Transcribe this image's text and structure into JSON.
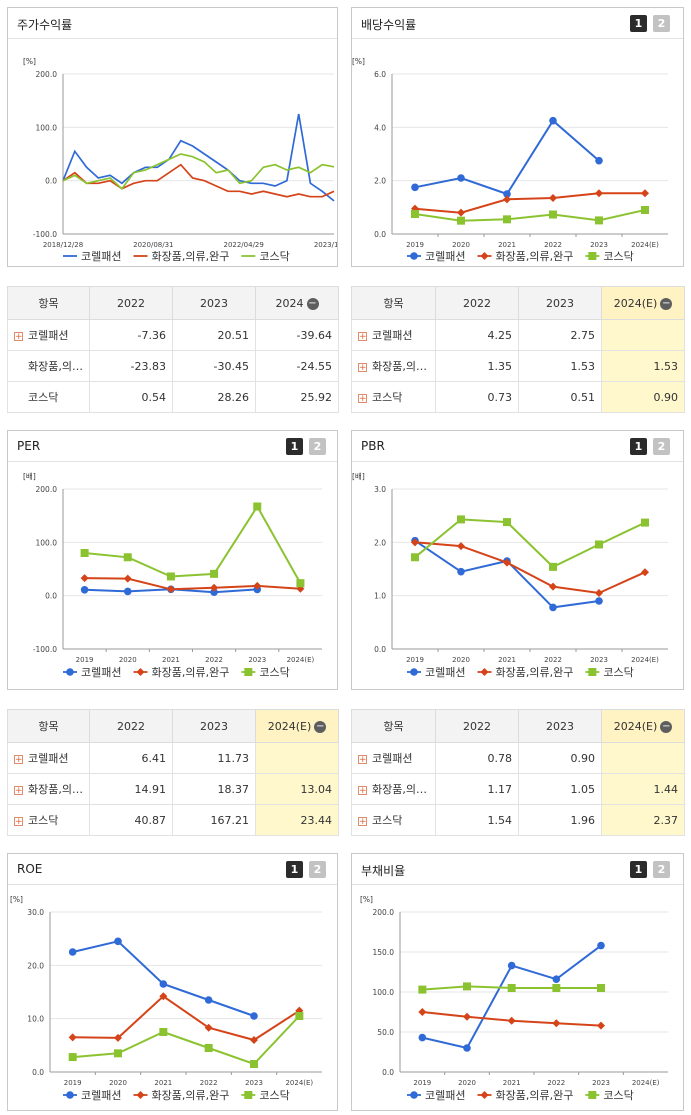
{
  "colors": {
    "s1": "#2f6ad6",
    "s2": "#d54419",
    "s3": "#8bc330"
  },
  "panels": {
    "stock": {
      "title": "주가수익률",
      "unit": "[%]",
      "yticks": [
        "200.0",
        "100.0",
        "0.0",
        "-100.0"
      ],
      "xticks": [
        "2018/12/28",
        "2020/08/31",
        "2022/04/29",
        "2023/12/28"
      ],
      "legend": [
        "코렐패션",
        "화장품,의류,완구",
        "코스닥"
      ]
    },
    "div": {
      "title": "배당수익률",
      "unit": "[%]",
      "pager": [
        "1",
        "2"
      ],
      "yticks": [
        "6.0",
        "4.0",
        "2.0",
        "0.0"
      ],
      "xticks": [
        "2019",
        "2020",
        "2021",
        "2022",
        "2023",
        "2024(E)"
      ],
      "legend": [
        "코렐패션",
        "화장품,의류,완구",
        "코스닥"
      ]
    },
    "per": {
      "title": "PER",
      "unit": "[배]",
      "pager": [
        "1",
        "2"
      ],
      "yticks": [
        "200.0",
        "100.0",
        "0.0",
        "-100.0"
      ],
      "xticks": [
        "2019",
        "2020",
        "2021",
        "2022",
        "2023",
        "2024(E)"
      ],
      "legend": [
        "코렐패션",
        "화장품,의류,완구",
        "코스닥"
      ]
    },
    "pbr": {
      "title": "PBR",
      "unit": "[배]",
      "pager": [
        "1",
        "2"
      ],
      "yticks": [
        "3.0",
        "2.0",
        "1.0",
        "0.0"
      ],
      "xticks": [
        "2019",
        "2020",
        "2021",
        "2022",
        "2023",
        "2024(E)"
      ],
      "legend": [
        "코렐패션",
        "화장품,의류,완구",
        "코스닥"
      ]
    },
    "roe": {
      "title": "ROE",
      "unit": "[%]",
      "pager": [
        "1",
        "2"
      ],
      "yticks": [
        "30.0",
        "20.0",
        "10.0",
        "0.0"
      ],
      "xticks": [
        "2019",
        "2020",
        "2021",
        "2022",
        "2023",
        "2024(E)"
      ],
      "legend": [
        "코렐패션",
        "화장품,의류,완구",
        "코스닥"
      ]
    },
    "debt": {
      "title": "부채비율",
      "unit": "[%]",
      "pager": [
        "1",
        "2"
      ],
      "yticks": [
        "200.0",
        "150.0",
        "100.0",
        "50.0",
        "0.0"
      ],
      "xticks": [
        "2019",
        "2020",
        "2021",
        "2022",
        "2023",
        "2024(E)"
      ],
      "legend": [
        "코렐패션",
        "화장품,의류,완구",
        "코스닥"
      ]
    }
  },
  "tables": {
    "stock": {
      "header": [
        "항목",
        "2022",
        "2023",
        "2024"
      ],
      "rows": [
        [
          "코렐패션",
          "-7.36",
          "20.51",
          "-39.64"
        ],
        [
          "화장품,의…",
          "-23.83",
          "-30.45",
          "-24.55"
        ],
        [
          "코스닥",
          "0.54",
          "28.26",
          "25.92"
        ]
      ]
    },
    "div": {
      "header": [
        "항목",
        "2022",
        "2023",
        "2024(E)"
      ],
      "rows": [
        [
          "코렐패션",
          "4.25",
          "2.75",
          ""
        ],
        [
          "화장품,의…",
          "1.35",
          "1.53",
          "1.53"
        ],
        [
          "코스닥",
          "0.73",
          "0.51",
          "0.90"
        ]
      ]
    },
    "per": {
      "header": [
        "항목",
        "2022",
        "2023",
        "2024(E)"
      ],
      "rows": [
        [
          "코렐패션",
          "6.41",
          "11.73",
          ""
        ],
        [
          "화장품,의…",
          "14.91",
          "18.37",
          "13.04"
        ],
        [
          "코스닥",
          "40.87",
          "167.21",
          "23.44"
        ]
      ]
    },
    "pbr": {
      "header": [
        "항목",
        "2022",
        "2023",
        "2024(E)"
      ],
      "rows": [
        [
          "코렐패션",
          "0.78",
          "0.90",
          ""
        ],
        [
          "화장품,의…",
          "1.17",
          "1.05",
          "1.44"
        ],
        [
          "코스닥",
          "1.54",
          "1.96",
          "2.37"
        ]
      ]
    }
  },
  "chart_data": [
    {
      "id": "stock",
      "type": "line",
      "title": "주가수익률",
      "ylabel": "[%]",
      "ylim": [
        -100,
        200
      ],
      "x": [
        "2018/12/28",
        "2019/03/28",
        "2019/06/28",
        "2019/09/27",
        "2019/12/27",
        "2020/03/27",
        "2020/06/26",
        "2020/08/31",
        "2020/12/30",
        "2021/03/26",
        "2021/06/25",
        "2021/09/24",
        "2021/12/30",
        "2022/03/25",
        "2022/06/24",
        "2022/09/23",
        "2022/12/29",
        "2023/03/24",
        "2023/06/23",
        "2023/09/22",
        "2023/11/10",
        "2023/12/28",
        "2024/03/22",
        "2024/06/28"
      ],
      "series": [
        {
          "name": "코렐패션",
          "values": [
            0,
            55,
            25,
            5,
            10,
            -5,
            15,
            25,
            25,
            40,
            75,
            65,
            50,
            35,
            20,
            0,
            -5,
            -5,
            -10,
            0,
            125,
            -5,
            -20,
            -38
          ]
        },
        {
          "name": "화장품,의류,완구",
          "values": [
            0,
            15,
            -5,
            -5,
            0,
            -15,
            -5,
            0,
            0,
            15,
            30,
            5,
            0,
            -10,
            -20,
            -20,
            -25,
            -20,
            -25,
            -30,
            -25,
            -30,
            -30,
            -20
          ]
        },
        {
          "name": "코스닥",
          "values": [
            0,
            10,
            -5,
            0,
            5,
            -15,
            15,
            20,
            30,
            40,
            50,
            45,
            35,
            15,
            20,
            -5,
            0,
            25,
            30,
            20,
            25,
            15,
            30,
            26
          ]
        }
      ]
    },
    {
      "id": "div",
      "type": "line",
      "title": "배당수익률",
      "ylabel": "[%]",
      "ylim": [
        0,
        6
      ],
      "categories": [
        "2019",
        "2020",
        "2021",
        "2022",
        "2023",
        "2024(E)"
      ],
      "series": [
        {
          "name": "코렐패션",
          "values": [
            1.75,
            2.1,
            1.5,
            4.25,
            2.75,
            null
          ]
        },
        {
          "name": "화장품,의류,완구",
          "values": [
            0.95,
            0.8,
            1.3,
            1.35,
            1.53,
            1.53
          ]
        },
        {
          "name": "코스닥",
          "values": [
            0.75,
            0.5,
            0.55,
            0.73,
            0.51,
            0.9
          ]
        }
      ]
    },
    {
      "id": "per",
      "type": "line",
      "title": "PER",
      "ylabel": "[배]",
      "ylim": [
        -100,
        200
      ],
      "categories": [
        "2019",
        "2020",
        "2021",
        "2022",
        "2023",
        "2024(E)"
      ],
      "series": [
        {
          "name": "코렐패션",
          "values": [
            11,
            8,
            12,
            6.41,
            11.73,
            null
          ]
        },
        {
          "name": "화장품,의류,완구",
          "values": [
            33,
            32,
            12,
            14.91,
            18.37,
            13.04
          ]
        },
        {
          "name": "코스닥",
          "values": [
            80,
            72,
            36,
            40.87,
            167.21,
            23.44
          ]
        }
      ]
    },
    {
      "id": "pbr",
      "type": "line",
      "title": "PBR",
      "ylabel": "[배]",
      "ylim": [
        0,
        3
      ],
      "categories": [
        "2019",
        "2020",
        "2021",
        "2022",
        "2023",
        "2024(E)"
      ],
      "series": [
        {
          "name": "코렐패션",
          "values": [
            2.03,
            1.45,
            1.65,
            0.78,
            0.9,
            null
          ]
        },
        {
          "name": "화장품,의류,완구",
          "values": [
            2.0,
            1.93,
            1.62,
            1.17,
            1.05,
            1.44
          ]
        },
        {
          "name": "코스닥",
          "values": [
            1.72,
            2.43,
            2.38,
            1.54,
            1.96,
            2.37
          ]
        }
      ]
    },
    {
      "id": "roe",
      "type": "line",
      "title": "ROE",
      "ylabel": "[%]",
      "ylim": [
        0,
        30
      ],
      "categories": [
        "2019",
        "2020",
        "2021",
        "2022",
        "2023",
        "2024(E)"
      ],
      "series": [
        {
          "name": "코렐패션",
          "values": [
            22.5,
            24.5,
            16.5,
            13.5,
            10.5,
            null
          ]
        },
        {
          "name": "화장품,의류,완구",
          "values": [
            6.5,
            6.4,
            14.2,
            8.3,
            6.0,
            11.5
          ]
        },
        {
          "name": "코스닥",
          "values": [
            2.8,
            3.5,
            7.5,
            4.5,
            1.5,
            10.5
          ]
        }
      ]
    },
    {
      "id": "debt",
      "type": "line",
      "title": "부채비율",
      "ylabel": "[%]",
      "ylim": [
        0,
        200
      ],
      "categories": [
        "2019",
        "2020",
        "2021",
        "2022",
        "2023",
        "2024(E)"
      ],
      "series": [
        {
          "name": "코렐패션",
          "values": [
            43,
            30,
            133,
            116,
            158,
            null
          ]
        },
        {
          "name": "화장품,의류,완구",
          "values": [
            75,
            69,
            64,
            61,
            58,
            null
          ]
        },
        {
          "name": "코스닥",
          "values": [
            103,
            107,
            105,
            105,
            105,
            null
          ]
        }
      ]
    }
  ]
}
